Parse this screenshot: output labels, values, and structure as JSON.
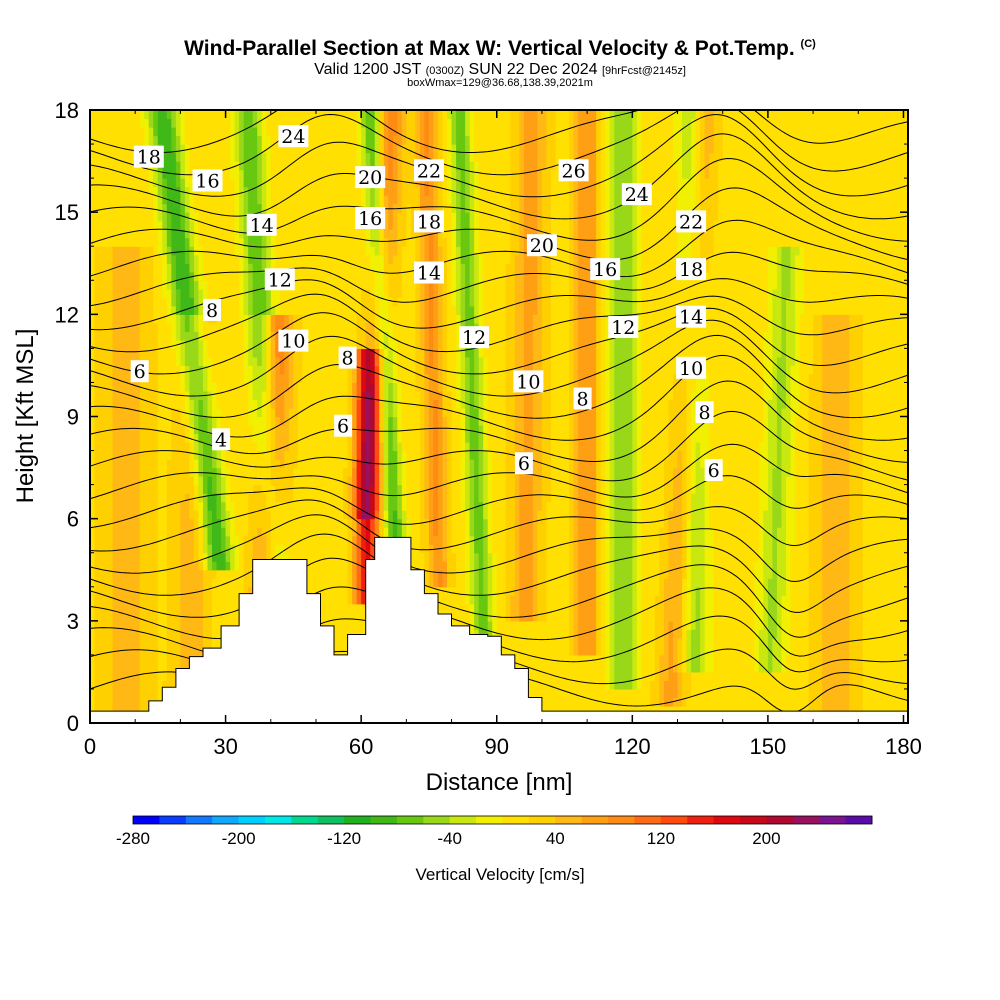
{
  "header": {
    "title": "Wind-Parallel Section at Max W: Vertical Velocity & Pot.Temp.",
    "copyright": "(C)",
    "valid_prefix": "Valid 1200 JST",
    "valid_zulu": "(0300Z)",
    "valid_date": "SUN 22 Dec 2024",
    "forecast": "[9hrFcst@2145z]",
    "box_info": "boxWmax=129@36.68,138.39,2021m"
  },
  "chart_data": {
    "type": "heatmap",
    "xlabel": "Distance [nm]",
    "ylabel": "Height [Kft MSL]",
    "xlim": [
      0,
      181
    ],
    "ylim": [
      0,
      18
    ],
    "xticks": [
      0,
      30,
      60,
      90,
      120,
      150,
      180
    ],
    "yticks": [
      0,
      3,
      6,
      9,
      12,
      15,
      18
    ],
    "colorbar": {
      "title": "Vertical Velocity [cm/s]",
      "min": -280,
      "max": 280,
      "tick_values": [
        -280,
        -200,
        -120,
        -40,
        40,
        120,
        200
      ],
      "tick_labels": [
        "-280",
        "-200",
        "-120",
        "-40",
        "40",
        "120",
        "200"
      ],
      "colors": [
        "#0000ff",
        "#0a3cff",
        "#1478ff",
        "#10a8ff",
        "#00d0ff",
        "#00e8e8",
        "#00d890",
        "#10c060",
        "#20b020",
        "#40b818",
        "#68c810",
        "#98d818",
        "#c8e810",
        "#f0f000",
        "#ffe000",
        "#ffd000",
        "#ffb814",
        "#ffa014",
        "#ff8a14",
        "#ff6a14",
        "#ff4a10",
        "#f02010",
        "#e00810",
        "#c80818",
        "#b00830",
        "#981060",
        "#7a1490",
        "#5a0ca8"
      ]
    },
    "terrain": [
      [
        0,
        0.35
      ],
      [
        10,
        0.35
      ],
      [
        13,
        0.65
      ],
      [
        16,
        1.05
      ],
      [
        19,
        1.6
      ],
      [
        22,
        1.95
      ],
      [
        25,
        2.2
      ],
      [
        29,
        2.85
      ],
      [
        33,
        3.8
      ],
      [
        36,
        4.8
      ],
      [
        45,
        4.8
      ],
      [
        48,
        3.8
      ],
      [
        51,
        2.85
      ],
      [
        54,
        2.0
      ],
      [
        57,
        2.6
      ],
      [
        61,
        4.8
      ],
      [
        63,
        5.45
      ],
      [
        68,
        5.45
      ],
      [
        71,
        4.5
      ],
      [
        74,
        3.8
      ],
      [
        77,
        3.2
      ],
      [
        80,
        2.85
      ],
      [
        84,
        2.6
      ],
      [
        88,
        2.55
      ],
      [
        91,
        2.0
      ],
      [
        94,
        1.6
      ],
      [
        97,
        0.75
      ],
      [
        100,
        0.35
      ],
      [
        181,
        0.35
      ]
    ],
    "theta_contour_labels": [
      {
        "text": "18",
        "x": 13,
        "y": 16.6
      },
      {
        "text": "16",
        "x": 26,
        "y": 15.9
      },
      {
        "text": "24",
        "x": 45,
        "y": 17.2
      },
      {
        "text": "14",
        "x": 38,
        "y": 14.6
      },
      {
        "text": "12",
        "x": 42,
        "y": 13.0
      },
      {
        "text": "10",
        "x": 45,
        "y": 11.2
      },
      {
        "text": "8",
        "x": 27,
        "y": 12.1
      },
      {
        "text": "6",
        "x": 11,
        "y": 10.3
      },
      {
        "text": "4",
        "x": 29,
        "y": 8.3
      },
      {
        "text": "20",
        "x": 62,
        "y": 16.0
      },
      {
        "text": "16",
        "x": 62,
        "y": 14.8
      },
      {
        "text": "8",
        "x": 57,
        "y": 10.7
      },
      {
        "text": "6",
        "x": 56,
        "y": 8.7
      },
      {
        "text": "22",
        "x": 75,
        "y": 16.2
      },
      {
        "text": "18",
        "x": 75,
        "y": 14.7
      },
      {
        "text": "14",
        "x": 75,
        "y": 13.2
      },
      {
        "text": "12",
        "x": 85,
        "y": 11.3
      },
      {
        "text": "10",
        "x": 97,
        "y": 10.0
      },
      {
        "text": "6",
        "x": 96,
        "y": 7.6
      },
      {
        "text": "26",
        "x": 107,
        "y": 16.2
      },
      {
        "text": "20",
        "x": 100,
        "y": 14.0
      },
      {
        "text": "16",
        "x": 114,
        "y": 13.3
      },
      {
        "text": "8",
        "x": 109,
        "y": 9.5
      },
      {
        "text": "24",
        "x": 121,
        "y": 15.5
      },
      {
        "text": "12",
        "x": 118,
        "y": 11.6
      },
      {
        "text": "22",
        "x": 133,
        "y": 14.7
      },
      {
        "text": "18",
        "x": 133,
        "y": 13.3
      },
      {
        "text": "14",
        "x": 133,
        "y": 11.9
      },
      {
        "text": "10",
        "x": 133,
        "y": 10.4
      },
      {
        "text": "8",
        "x": 136,
        "y": 9.1
      },
      {
        "text": "6",
        "x": 138,
        "y": 7.4
      }
    ]
  }
}
